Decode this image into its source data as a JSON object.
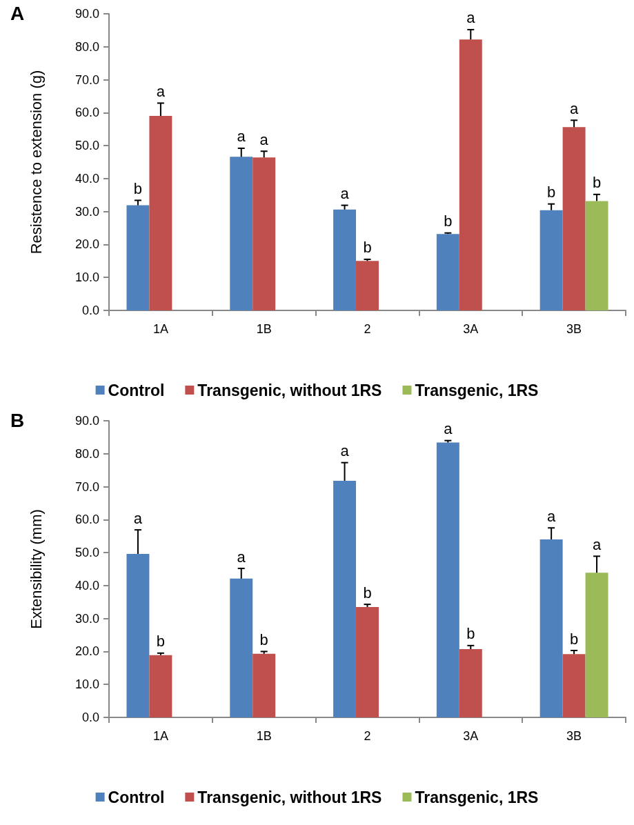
{
  "chart_data": [
    {
      "type": "bar",
      "title": "A",
      "ylabel": "Resistence to extension (g)",
      "categories": [
        "1A",
        "1B",
        "2",
        "3A",
        "3B"
      ],
      "ylim": [
        0,
        90
      ],
      "yticks": [
        {
          "value": 0,
          "label": "0.0"
        },
        {
          "value": 10,
          "label": "10.0"
        },
        {
          "value": 20,
          "label": "20.0"
        },
        {
          "value": 30,
          "label": "30.0"
        },
        {
          "value": 40,
          "label": "40.0"
        },
        {
          "value": 50,
          "label": "50.0"
        },
        {
          "value": 60,
          "label": "60.0"
        },
        {
          "value": 70,
          "label": "70.0"
        },
        {
          "value": 80,
          "label": "80.0"
        },
        {
          "value": 90,
          "label": "90.0"
        }
      ],
      "legend": "bottom",
      "series": [
        {
          "name": "Control",
          "color": "#4f81bd",
          "values": [
            31.9,
            46.6,
            30.6,
            23.2,
            30.4
          ],
          "errors": [
            [
              31.9,
              33.4
            ],
            [
              46.6,
              49.2
            ],
            [
              30.6,
              31.9
            ],
            [
              23.2,
              23.5
            ],
            [
              30.4,
              32.3
            ]
          ],
          "value_labels": [
            "b",
            "a",
            "a",
            "b",
            "b"
          ]
        },
        {
          "name": "Transgenic, without 1RS",
          "color": "#c0504d",
          "values": [
            59.0,
            46.4,
            15.0,
            82.2,
            55.6
          ],
          "errors": [
            [
              59.0,
              62.9
            ],
            [
              46.4,
              48.3
            ],
            [
              15.0,
              15.5
            ],
            [
              82.2,
              85.2
            ],
            [
              55.6,
              57.7
            ]
          ],
          "value_labels": [
            "a",
            "a",
            "b",
            "a",
            "a"
          ]
        },
        {
          "name": "Transgenic, 1RS",
          "color": "#9bbb59",
          "values": [
            null,
            null,
            null,
            null,
            33.2
          ],
          "errors": [
            null,
            null,
            null,
            null,
            [
              33.2,
              35.2
            ]
          ],
          "value_labels": [
            null,
            null,
            null,
            null,
            "b"
          ]
        }
      ]
    },
    {
      "type": "bar",
      "title": "B",
      "ylabel": "Extensibility (mm)",
      "categories": [
        "1A",
        "1B",
        "2",
        "3A",
        "3B"
      ],
      "ylim": [
        0,
        90
      ],
      "yticks": [
        {
          "value": 0,
          "label": "0.0"
        },
        {
          "value": 10,
          "label": "10.0"
        },
        {
          "value": 20,
          "label": "20.0"
        },
        {
          "value": 30,
          "label": "30.0"
        },
        {
          "value": 40,
          "label": "40.0"
        },
        {
          "value": 50,
          "label": "50.0"
        },
        {
          "value": 60,
          "label": "60.0"
        },
        {
          "value": 70,
          "label": "70.0"
        },
        {
          "value": 80,
          "label": "80.0"
        },
        {
          "value": 90,
          "label": "90.0"
        }
      ],
      "legend": "bottom",
      "series": [
        {
          "name": "Control",
          "color": "#4f81bd",
          "values": [
            49.6,
            42.1,
            71.8,
            83.4,
            54.0
          ],
          "errors": [
            [
              49.6,
              56.9
            ],
            [
              42.1,
              45.2
            ],
            [
              71.8,
              77.3
            ],
            [
              83.4,
              84.0
            ],
            [
              54.0,
              57.5
            ]
          ],
          "value_labels": [
            "a",
            "a",
            "a",
            "a",
            "a"
          ]
        },
        {
          "name": "Transgenic, without 1RS",
          "color": "#c0504d",
          "values": [
            18.9,
            19.3,
            33.5,
            20.7,
            19.2
          ],
          "errors": [
            [
              18.9,
              19.5
            ],
            [
              19.3,
              20.0
            ],
            [
              33.5,
              34.3
            ],
            [
              20.7,
              21.8
            ],
            [
              19.2,
              20.3
            ]
          ],
          "value_labels": [
            "b",
            "b",
            "b",
            "b",
            "b"
          ]
        },
        {
          "name": "Transgenic, 1RS",
          "color": "#9bbb59",
          "values": [
            null,
            null,
            null,
            null,
            43.9
          ],
          "errors": [
            null,
            null,
            null,
            null,
            [
              43.9,
              48.9
            ]
          ],
          "value_labels": [
            null,
            null,
            null,
            null,
            "a"
          ]
        }
      ]
    }
  ]
}
